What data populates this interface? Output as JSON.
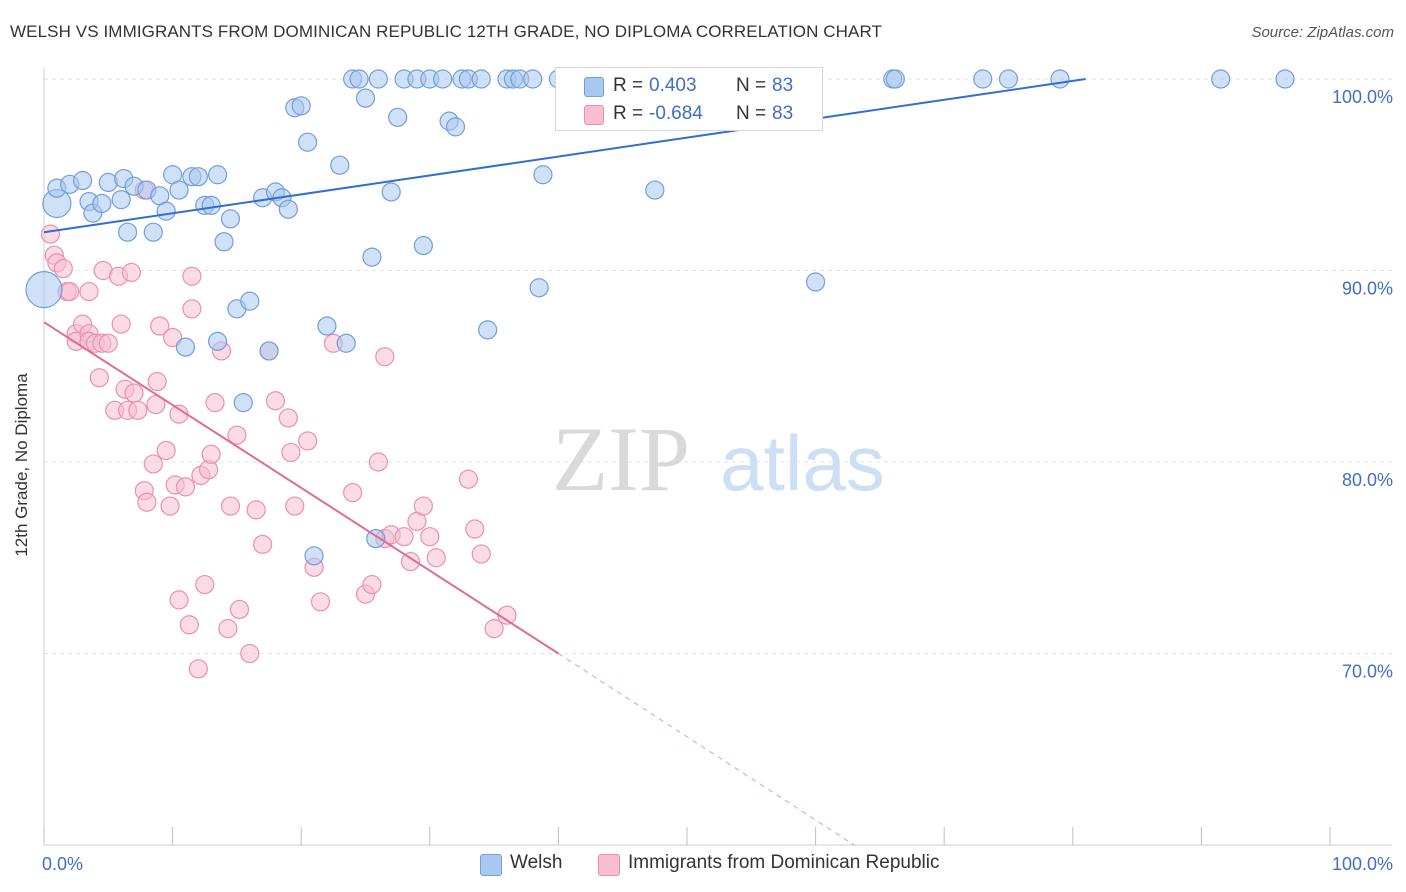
{
  "header": {
    "title": "WELSH VS IMMIGRANTS FROM DOMINICAN REPUBLIC 12TH GRADE, NO DIPLOMA CORRELATION CHART",
    "source": "Source: ZipAtlas.com"
  },
  "watermark": {
    "zip": "ZIP",
    "atlas": "atlas"
  },
  "legend": {
    "rows": [
      {
        "r_label": "R =",
        "r_value": "0.403",
        "n_label": "N =",
        "n_value": "83"
      },
      {
        "r_label": "R =",
        "r_value": "-0.684",
        "n_label": "N =",
        "n_value": "83"
      }
    ]
  },
  "chart_data": {
    "type": "scatter",
    "title": "WELSH VS IMMIGRANTS FROM DOMINICAN REPUBLIC 12TH GRADE, NO DIPLOMA CORRELATION CHART",
    "xlabel": "",
    "ylabel": "12th Grade, No Diploma",
    "xlim": [
      0,
      100
    ],
    "ylim": [
      60,
      100
    ],
    "x_tick_labels": [
      "0.0%",
      "100.0%"
    ],
    "y_ticks": [
      70,
      80,
      90,
      100
    ],
    "y_tick_labels": [
      "70.0%",
      "80.0%",
      "90.0%",
      "100.0%"
    ],
    "grid": true,
    "legend_position": "bottom",
    "colors": {
      "welsh_fill": "#a9c7ef",
      "welsh_stroke": "#6f9fdc",
      "welsh_line": "#2f6fcf",
      "dominican_fill": "#f7bdd0",
      "dominican_stroke": "#ec8fb0",
      "dominican_line": "#e26a95",
      "tick_label": "#3f6fc4"
    },
    "series": [
      {
        "name": "Welsh",
        "trend": {
          "x": [
            0,
            81
          ],
          "y": [
            92.0,
            100.0
          ]
        },
        "points": [
          [
            0.0,
            89,
            18
          ],
          [
            1.0,
            93.5,
            14
          ],
          [
            1.0,
            94.3,
            9
          ],
          [
            2.0,
            94.5,
            9
          ],
          [
            3.0,
            94.7,
            9
          ],
          [
            3.5,
            93.6,
            9
          ],
          [
            3.8,
            93.0,
            9
          ],
          [
            4.5,
            93.5,
            9
          ],
          [
            5.0,
            94.6,
            9
          ],
          [
            6.0,
            93.7,
            9
          ],
          [
            6.2,
            94.8,
            9
          ],
          [
            6.5,
            92.0,
            9
          ],
          [
            7.0,
            94.4,
            9
          ],
          [
            8.0,
            94.2,
            9
          ],
          [
            8.5,
            92.0,
            9
          ],
          [
            9.0,
            93.9,
            9
          ],
          [
            9.5,
            93.1,
            9
          ],
          [
            10.0,
            95.0,
            9
          ],
          [
            10.5,
            94.2,
            9
          ],
          [
            11.0,
            86.0,
            9
          ],
          [
            11.5,
            94.9,
            9
          ],
          [
            12.0,
            94.9,
            9
          ],
          [
            12.5,
            93.4,
            9
          ],
          [
            13.0,
            93.4,
            9
          ],
          [
            13.5,
            86.3,
            9
          ],
          [
            13.5,
            95.0,
            9
          ],
          [
            14.0,
            91.5,
            9
          ],
          [
            14.5,
            92.7,
            9
          ],
          [
            15.0,
            88.0,
            9
          ],
          [
            15.5,
            83.1,
            9
          ],
          [
            16.0,
            88.4,
            9
          ],
          [
            17.0,
            93.8,
            9
          ],
          [
            17.5,
            85.8,
            9
          ],
          [
            18.0,
            94.1,
            9
          ],
          [
            18.5,
            93.8,
            9
          ],
          [
            19.0,
            93.2,
            9
          ],
          [
            19.5,
            98.5,
            9
          ],
          [
            20.0,
            98.6,
            9
          ],
          [
            20.5,
            96.7,
            9
          ],
          [
            21.0,
            75.1,
            9
          ],
          [
            22.0,
            87.1,
            9
          ],
          [
            23.0,
            95.5,
            9
          ],
          [
            23.5,
            86.2,
            9
          ],
          [
            24.0,
            100,
            9
          ],
          [
            24.5,
            100,
            9
          ],
          [
            25.0,
            99.0,
            9
          ],
          [
            25.5,
            90.7,
            9
          ],
          [
            26.0,
            100,
            9
          ],
          [
            25.8,
            76.0,
            9
          ],
          [
            27.0,
            94.1,
            9
          ],
          [
            27.5,
            98.0,
            9
          ],
          [
            28.0,
            100,
            9
          ],
          [
            29.0,
            100,
            9
          ],
          [
            29.5,
            91.3,
            9
          ],
          [
            30.0,
            100,
            9
          ],
          [
            31.0,
            100,
            9
          ],
          [
            31.5,
            97.8,
            9
          ],
          [
            32.0,
            97.5,
            9
          ],
          [
            32.5,
            100,
            9
          ],
          [
            33.0,
            100,
            9
          ],
          [
            34.0,
            100,
            9
          ],
          [
            34.5,
            86.9,
            9
          ],
          [
            36.0,
            100,
            9
          ],
          [
            36.5,
            100,
            9
          ],
          [
            37.0,
            100,
            9
          ],
          [
            38.0,
            100,
            9
          ],
          [
            38.5,
            89.1,
            9
          ],
          [
            38.8,
            95.0,
            9
          ],
          [
            40.0,
            100,
            9
          ],
          [
            42.0,
            100,
            9
          ],
          [
            46.0,
            100,
            9
          ],
          [
            47.5,
            94.2,
            9
          ],
          [
            60.0,
            89.4,
            9
          ],
          [
            66.0,
            100,
            9
          ],
          [
            66.2,
            100,
            9
          ],
          [
            73.0,
            100,
            9
          ],
          [
            75.0,
            100,
            9
          ],
          [
            79.0,
            100,
            9
          ],
          [
            91.5,
            100,
            9
          ],
          [
            96.5,
            100,
            9
          ]
        ]
      },
      {
        "name": "Immigrants from Dominican Republic",
        "trend": {
          "x": [
            0,
            40
          ],
          "y": [
            87.3,
            70.0
          ]
        },
        "trend_dashed": {
          "x": [
            40,
            63
          ],
          "y": [
            70.0,
            60.0
          ]
        },
        "points": [
          [
            0.5,
            91.9,
            9
          ],
          [
            0.8,
            90.8,
            9
          ],
          [
            1.0,
            90.4,
            9
          ],
          [
            1.5,
            90.1,
            9
          ],
          [
            1.8,
            88.9,
            9
          ],
          [
            2.0,
            88.9,
            9
          ],
          [
            2.5,
            86.7,
            9
          ],
          [
            2.5,
            86.3,
            9
          ],
          [
            3.0,
            87.2,
            9
          ],
          [
            3.5,
            86.7,
            9
          ],
          [
            3.5,
            86.3,
            9
          ],
          [
            4.0,
            86.2,
            9
          ],
          [
            3.5,
            88.9,
            9
          ],
          [
            4.3,
            84.4,
            9
          ],
          [
            4.5,
            86.2,
            9
          ],
          [
            4.6,
            90.0,
            9
          ],
          [
            5.0,
            86.2,
            9
          ],
          [
            5.5,
            82.7,
            9
          ],
          [
            5.8,
            89.7,
            9
          ],
          [
            6.0,
            87.2,
            9
          ],
          [
            6.3,
            83.8,
            9
          ],
          [
            6.5,
            82.7,
            9
          ],
          [
            6.8,
            89.9,
            9
          ],
          [
            7.0,
            83.6,
            9
          ],
          [
            7.3,
            82.7,
            9
          ],
          [
            7.8,
            94.2,
            9
          ],
          [
            7.8,
            78.5,
            9
          ],
          [
            8.0,
            77.9,
            9
          ],
          [
            8.5,
            79.9,
            9
          ],
          [
            8.7,
            83.0,
            9
          ],
          [
            8.8,
            84.2,
            9
          ],
          [
            9.0,
            87.1,
            9
          ],
          [
            9.5,
            80.6,
            9
          ],
          [
            9.8,
            77.7,
            9
          ],
          [
            10.0,
            86.5,
            9
          ],
          [
            10.2,
            78.8,
            9
          ],
          [
            10.5,
            82.5,
            9
          ],
          [
            10.5,
            72.8,
            9
          ],
          [
            11.0,
            78.7,
            9
          ],
          [
            11.3,
            71.5,
            9
          ],
          [
            11.5,
            89.7,
            9
          ],
          [
            11.5,
            88.0,
            9
          ],
          [
            12.0,
            69.2,
            9
          ],
          [
            12.2,
            79.3,
            9
          ],
          [
            12.5,
            73.6,
            9
          ],
          [
            12.8,
            79.6,
            9
          ],
          [
            13.0,
            80.4,
            9
          ],
          [
            13.3,
            83.1,
            9
          ],
          [
            13.8,
            85.8,
            9
          ],
          [
            14.3,
            71.3,
            9
          ],
          [
            14.5,
            77.7,
            9
          ],
          [
            15.0,
            81.4,
            9
          ],
          [
            15.2,
            72.3,
            9
          ],
          [
            16.0,
            70.0,
            9
          ],
          [
            16.5,
            77.5,
            9
          ],
          [
            17.0,
            75.7,
            9
          ],
          [
            17.5,
            85.8,
            9
          ],
          [
            18.0,
            83.2,
            9
          ],
          [
            19.0,
            82.3,
            9
          ],
          [
            19.2,
            80.5,
            9
          ],
          [
            19.5,
            77.7,
            9
          ],
          [
            20.5,
            81.1,
            9
          ],
          [
            21.0,
            74.5,
            9
          ],
          [
            21.5,
            72.7,
            9
          ],
          [
            22.5,
            86.2,
            9
          ],
          [
            24.0,
            78.4,
            9
          ],
          [
            25.0,
            73.1,
            9
          ],
          [
            25.5,
            73.6,
            9
          ],
          [
            26.0,
            80.0,
            9
          ],
          [
            26.5,
            76.0,
            9
          ],
          [
            27.0,
            76.2,
            9
          ],
          [
            28.0,
            76.1,
            9
          ],
          [
            28.5,
            74.8,
            9
          ],
          [
            29.0,
            76.9,
            9
          ],
          [
            29.5,
            77.7,
            9
          ],
          [
            30.0,
            76.1,
            9
          ],
          [
            30.5,
            75.0,
            9
          ],
          [
            33.0,
            79.1,
            9
          ],
          [
            33.5,
            76.5,
            9
          ],
          [
            34.0,
            75.2,
            9
          ],
          [
            35.0,
            71.3,
            9
          ],
          [
            36.0,
            72.0,
            9
          ],
          [
            26.5,
            85.5,
            9
          ]
        ]
      }
    ]
  }
}
